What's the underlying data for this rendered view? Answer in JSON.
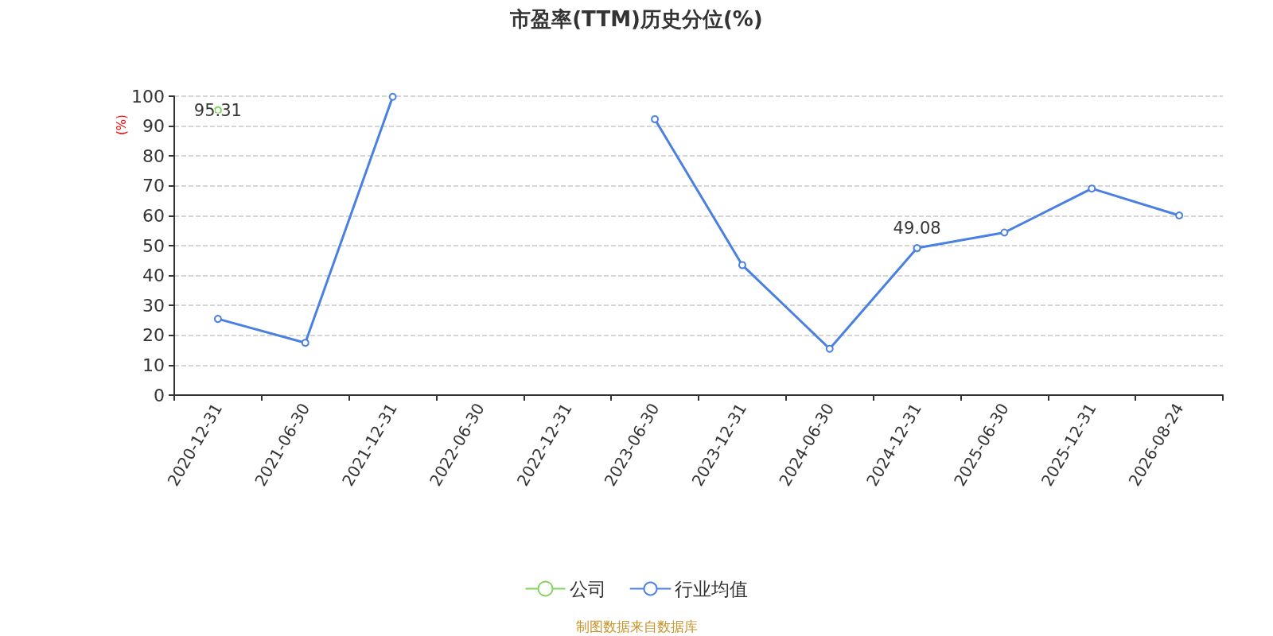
{
  "chart_data": {
    "type": "line",
    "title": "市盈率(TTM)历史分位(%)",
    "ylabel": "(%)",
    "categories": [
      "2020-12-31",
      "2021-06-30",
      "2021-12-31",
      "2022-06-30",
      "2022-12-31",
      "2023-06-30",
      "2023-12-31",
      "2024-06-30",
      "2024-12-31",
      "2025-06-30",
      "2025-12-31",
      "2026-08-24"
    ],
    "series": [
      {
        "name": "公司",
        "type": "scatter",
        "color": "#62c832",
        "values": [
          95.31,
          null,
          null,
          null,
          null,
          null,
          null,
          null,
          49.08,
          null,
          null,
          null
        ],
        "value_labels": [
          "95.31",
          null,
          null,
          null,
          null,
          null,
          null,
          null,
          "49.08",
          null,
          null,
          null
        ]
      },
      {
        "name": "行业均值",
        "color": "#4a80e2",
        "values": [
          25.5,
          17.5,
          99.8,
          null,
          null,
          92.3,
          43.5,
          15.5,
          49.2,
          54.4,
          69.1,
          60.1
        ]
      }
    ],
    "ylim": [
      0,
      100
    ],
    "yticks": [
      0,
      10,
      20,
      30,
      40,
      50,
      60,
      70,
      80,
      90,
      100
    ],
    "grid": "y",
    "legend": "bottom",
    "marker": "circle",
    "line_style": "solid",
    "annotations": [
      "制图数据来自数据库"
    ]
  }
}
